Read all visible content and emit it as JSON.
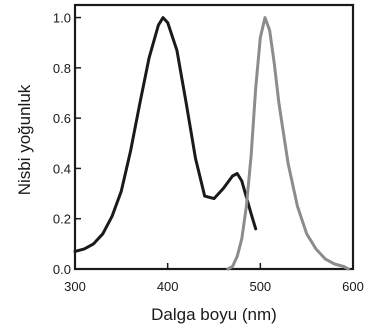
{
  "chart_data": {
    "type": "line",
    "title": "",
    "xlabel": "Dalga boyu (nm)",
    "ylabel": "Nisbi yoğunluk",
    "xlim": [
      300,
      600
    ],
    "ylim": [
      0,
      1.05
    ],
    "xticks": [
      300,
      400,
      500,
      600
    ],
    "yticks": [
      0.0,
      0.2,
      0.4,
      0.6,
      0.8,
      1.0
    ],
    "ytick_labels": [
      "0.0",
      "0.2",
      "0.4",
      "0.6",
      "0.8",
      "1.0"
    ],
    "grid": false,
    "legend": "none",
    "series": [
      {
        "color": "#1a1a1a",
        "x": [
          300,
          310,
          320,
          330,
          340,
          350,
          360,
          370,
          380,
          390,
          395,
          400,
          410,
          420,
          430,
          440,
          450,
          460,
          470,
          475,
          480,
          490,
          495
        ],
        "y": [
          0.07,
          0.08,
          0.1,
          0.14,
          0.21,
          0.31,
          0.47,
          0.66,
          0.84,
          0.97,
          1.0,
          0.98,
          0.87,
          0.66,
          0.44,
          0.29,
          0.28,
          0.32,
          0.37,
          0.38,
          0.35,
          0.22,
          0.16
        ]
      },
      {
        "color": "#8c8c8c",
        "x": [
          465,
          470,
          475,
          480,
          485,
          490,
          495,
          500,
          505,
          510,
          515,
          520,
          530,
          540,
          550,
          560,
          570,
          580,
          590,
          595
        ],
        "y": [
          0.0,
          0.01,
          0.05,
          0.12,
          0.25,
          0.45,
          0.72,
          0.92,
          1.0,
          0.95,
          0.82,
          0.66,
          0.42,
          0.25,
          0.14,
          0.08,
          0.04,
          0.02,
          0.01,
          0.0
        ]
      }
    ]
  }
}
